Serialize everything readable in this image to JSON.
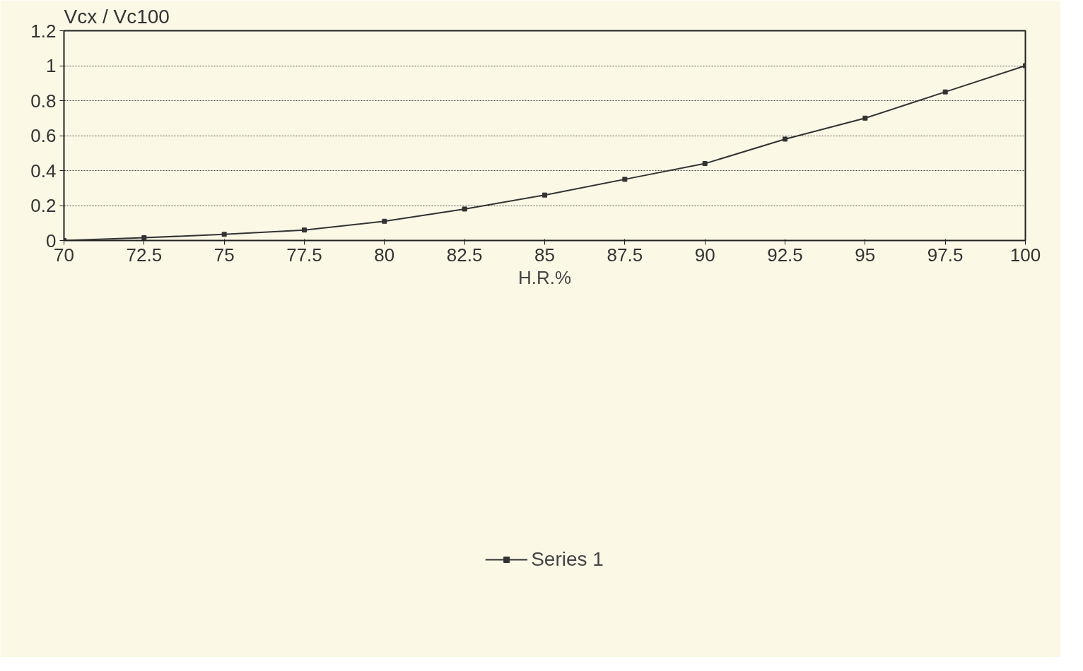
{
  "chart_data": {
    "type": "line",
    "xlabel": "H.R.%",
    "ylabel": "Vcx / Vc100",
    "x": [
      70,
      72.5,
      75,
      77.5,
      80,
      82.5,
      85,
      87.5,
      90,
      92.5,
      95,
      97.5,
      100
    ],
    "series": [
      {
        "name": "Series 1",
        "color": "#333333",
        "values": [
          0,
          0.016,
          0.035,
          0.06,
          0.11,
          0.18,
          0.26,
          0.35,
          0.44,
          0.58,
          0.7,
          0.85,
          1.0
        ]
      }
    ],
    "xlim": [
      70,
      100
    ],
    "xticks": [
      70,
      72.5,
      75,
      77.5,
      80,
      82.5,
      85,
      87.5,
      90,
      92.5,
      95,
      97.5,
      100
    ],
    "ylim": [
      0,
      1.2
    ],
    "yticks": [
      0,
      0.2,
      0.4,
      0.6,
      0.8,
      1,
      1.2
    ],
    "grid": "y",
    "legend": "bottom",
    "marker": "square",
    "line_style": "solid"
  }
}
